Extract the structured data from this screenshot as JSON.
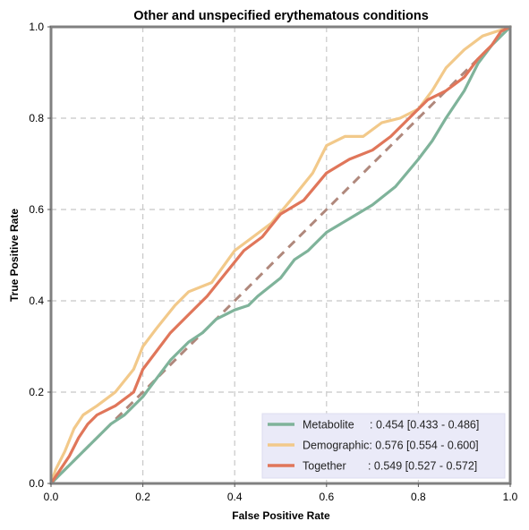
{
  "chart_data": {
    "type": "line",
    "title": "Other and unspecified erythematous conditions",
    "xlabel": "False Positive Rate",
    "ylabel": "True Positive Rate",
    "xlim": [
      0,
      1
    ],
    "ylim": [
      0,
      1
    ],
    "x_ticks": [
      "0.0",
      "0.2",
      "0.4",
      "0.6",
      "0.8",
      "1.0"
    ],
    "y_ticks": [
      "0.0",
      "0.2",
      "0.4",
      "0.6",
      "0.8",
      "1.0"
    ],
    "grid": true,
    "legend_position": "bottom-right",
    "diagonal": {
      "x": [
        0,
        1
      ],
      "y": [
        0,
        1
      ],
      "color": "#b0887c",
      "style": "dashed"
    },
    "series": [
      {
        "name": "Metabolite",
        "legend_label": "Metabolite     : 0.454 [0.433 - 0.486]",
        "color": "#7fb39a",
        "x": [
          0,
          0.02,
          0.05,
          0.08,
          0.1,
          0.13,
          0.16,
          0.2,
          0.23,
          0.26,
          0.3,
          0.33,
          0.36,
          0.4,
          0.43,
          0.45,
          0.5,
          0.53,
          0.56,
          0.6,
          0.65,
          0.7,
          0.75,
          0.8,
          0.83,
          0.86,
          0.9,
          0.93,
          0.96,
          1.0
        ],
        "y": [
          0,
          0.02,
          0.05,
          0.08,
          0.1,
          0.13,
          0.15,
          0.19,
          0.23,
          0.27,
          0.31,
          0.33,
          0.36,
          0.38,
          0.39,
          0.41,
          0.45,
          0.49,
          0.51,
          0.55,
          0.58,
          0.61,
          0.65,
          0.71,
          0.75,
          0.8,
          0.86,
          0.92,
          0.96,
          1.0
        ]
      },
      {
        "name": "Demographic",
        "legend_label": "Demographic: 0.576 [0.554 - 0.600]",
        "color": "#f2c98a",
        "x": [
          0,
          0.01,
          0.03,
          0.05,
          0.07,
          0.1,
          0.14,
          0.18,
          0.2,
          0.23,
          0.27,
          0.3,
          0.35,
          0.4,
          0.44,
          0.48,
          0.53,
          0.57,
          0.6,
          0.64,
          0.68,
          0.72,
          0.76,
          0.8,
          0.83,
          0.86,
          0.9,
          0.94,
          0.97,
          1.0
        ],
        "y": [
          0,
          0.03,
          0.07,
          0.12,
          0.15,
          0.17,
          0.2,
          0.25,
          0.3,
          0.34,
          0.39,
          0.42,
          0.44,
          0.51,
          0.54,
          0.57,
          0.63,
          0.68,
          0.74,
          0.76,
          0.76,
          0.79,
          0.8,
          0.82,
          0.86,
          0.91,
          0.95,
          0.98,
          0.99,
          1.0
        ]
      },
      {
        "name": "Together",
        "legend_label": "Together       : 0.549 [0.527 - 0.572]",
        "color": "#e0765a",
        "x": [
          0,
          0.02,
          0.04,
          0.06,
          0.08,
          0.1,
          0.14,
          0.18,
          0.2,
          0.23,
          0.26,
          0.3,
          0.34,
          0.38,
          0.42,
          0.46,
          0.5,
          0.55,
          0.6,
          0.65,
          0.7,
          0.74,
          0.78,
          0.82,
          0.86,
          0.9,
          0.93,
          0.96,
          0.98,
          1.0
        ],
        "y": [
          0,
          0.03,
          0.06,
          0.1,
          0.13,
          0.15,
          0.17,
          0.2,
          0.25,
          0.29,
          0.33,
          0.37,
          0.41,
          0.46,
          0.51,
          0.54,
          0.59,
          0.62,
          0.68,
          0.71,
          0.73,
          0.76,
          0.8,
          0.84,
          0.86,
          0.89,
          0.93,
          0.96,
          0.99,
          1.0
        ]
      }
    ]
  }
}
